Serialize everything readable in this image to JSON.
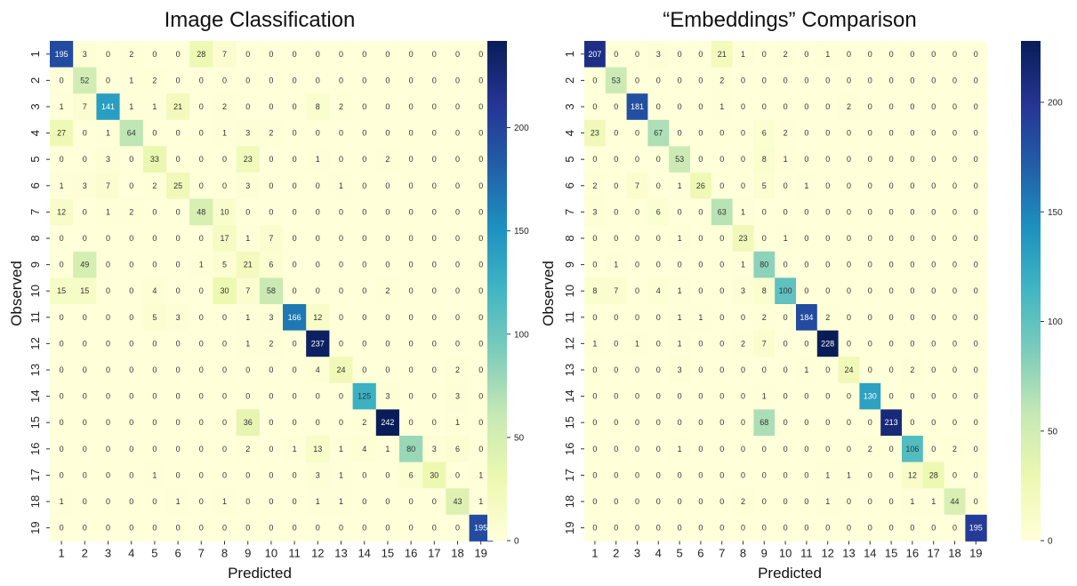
{
  "chart_data": [
    {
      "type": "heatmap",
      "title": "Image Classification",
      "xlabel": "Predicted",
      "ylabel": "Observed",
      "categories": [
        "1",
        "2",
        "3",
        "4",
        "5",
        "6",
        "7",
        "8",
        "9",
        "10",
        "11",
        "12",
        "13",
        "14",
        "15",
        "16",
        "17",
        "18",
        "19"
      ],
      "colorbar": {
        "min": 0,
        "max": 242,
        "ticks": [
          "0",
          "50",
          "100",
          "150",
          "200"
        ]
      },
      "matrix": [
        [
          195,
          3,
          0,
          2,
          0,
          0,
          28,
          7,
          0,
          0,
          0,
          0,
          0,
          0,
          0,
          0,
          0,
          0,
          0
        ],
        [
          0,
          52,
          0,
          1,
          2,
          0,
          0,
          0,
          0,
          0,
          0,
          0,
          0,
          0,
          0,
          0,
          0,
          0,
          0
        ],
        [
          1,
          7,
          141,
          1,
          1,
          21,
          0,
          2,
          0,
          0,
          0,
          8,
          2,
          0,
          0,
          0,
          0,
          0,
          0
        ],
        [
          27,
          0,
          1,
          64,
          0,
          0,
          0,
          1,
          3,
          2,
          0,
          0,
          0,
          0,
          0,
          0,
          0,
          0,
          0
        ],
        [
          0,
          0,
          3,
          0,
          33,
          0,
          0,
          0,
          23,
          0,
          0,
          1,
          0,
          0,
          2,
          0,
          0,
          0,
          0
        ],
        [
          1,
          3,
          7,
          0,
          2,
          25,
          0,
          0,
          3,
          0,
          0,
          0,
          1,
          0,
          0,
          0,
          0,
          0,
          0
        ],
        [
          12,
          0,
          1,
          2,
          0,
          0,
          48,
          10,
          0,
          0,
          0,
          0,
          0,
          0,
          0,
          0,
          0,
          0,
          0
        ],
        [
          0,
          0,
          0,
          0,
          0,
          0,
          0,
          17,
          1,
          7,
          0,
          0,
          0,
          0,
          0,
          0,
          0,
          0,
          0
        ],
        [
          0,
          49,
          0,
          0,
          0,
          0,
          1,
          5,
          21,
          6,
          0,
          0,
          0,
          0,
          0,
          0,
          0,
          0,
          0
        ],
        [
          15,
          15,
          0,
          0,
          4,
          0,
          0,
          30,
          7,
          58,
          0,
          0,
          0,
          0,
          2,
          0,
          0,
          0,
          0
        ],
        [
          0,
          0,
          0,
          0,
          5,
          3,
          0,
          0,
          1,
          3,
          166,
          12,
          0,
          0,
          0,
          0,
          0,
          0,
          0
        ],
        [
          0,
          0,
          0,
          0,
          0,
          0,
          0,
          0,
          1,
          2,
          0,
          237,
          0,
          0,
          0,
          0,
          0,
          0,
          0
        ],
        [
          0,
          0,
          0,
          0,
          0,
          0,
          0,
          0,
          0,
          0,
          0,
          4,
          24,
          0,
          0,
          0,
          0,
          2,
          0
        ],
        [
          0,
          0,
          0,
          0,
          0,
          0,
          0,
          0,
          0,
          0,
          0,
          0,
          0,
          125,
          3,
          0,
          0,
          3,
          0
        ],
        [
          0,
          0,
          0,
          0,
          0,
          0,
          0,
          0,
          36,
          0,
          0,
          0,
          0,
          2,
          242,
          0,
          0,
          1,
          0
        ],
        [
          0,
          0,
          0,
          0,
          0,
          0,
          0,
          0,
          2,
          0,
          1,
          13,
          1,
          4,
          1,
          80,
          3,
          6,
          0
        ],
        [
          0,
          0,
          0,
          0,
          1,
          0,
          0,
          0,
          0,
          0,
          0,
          3,
          1,
          0,
          0,
          6,
          30,
          0,
          1
        ],
        [
          1,
          0,
          0,
          0,
          0,
          1,
          0,
          1,
          0,
          0,
          0,
          1,
          1,
          0,
          0,
          0,
          0,
          43,
          1
        ],
        [
          0,
          0,
          0,
          0,
          0,
          0,
          0,
          0,
          0,
          0,
          0,
          0,
          0,
          0,
          0,
          0,
          0,
          0,
          195
        ]
      ]
    },
    {
      "type": "heatmap",
      "title": "“Embeddings” Comparison",
      "xlabel": "Predicted",
      "ylabel": "Observed",
      "categories": [
        "1",
        "2",
        "3",
        "4",
        "5",
        "6",
        "7",
        "8",
        "9",
        "10",
        "11",
        "12",
        "13",
        "14",
        "15",
        "16",
        "17",
        "18",
        "19"
      ],
      "colorbar": {
        "min": 0,
        "max": 228,
        "ticks": [
          "0",
          "50",
          "100",
          "150",
          "200"
        ]
      },
      "matrix": [
        [
          207,
          0,
          0,
          3,
          0,
          0,
          21,
          1,
          0,
          2,
          0,
          1,
          0,
          0,
          0,
          0,
          0,
          0,
          0
        ],
        [
          0,
          53,
          0,
          0,
          0,
          0,
          2,
          0,
          0,
          0,
          0,
          0,
          0,
          0,
          0,
          0,
          0,
          0,
          0
        ],
        [
          0,
          0,
          181,
          0,
          0,
          0,
          1,
          0,
          0,
          0,
          0,
          0,
          2,
          0,
          0,
          0,
          0,
          0,
          0
        ],
        [
          23,
          0,
          0,
          67,
          0,
          0,
          0,
          0,
          6,
          2,
          0,
          0,
          0,
          0,
          0,
          0,
          0,
          0,
          0
        ],
        [
          0,
          0,
          0,
          0,
          53,
          0,
          0,
          0,
          8,
          1,
          0,
          0,
          0,
          0,
          0,
          0,
          0,
          0,
          0
        ],
        [
          2,
          0,
          7,
          0,
          1,
          26,
          0,
          0,
          5,
          0,
          1,
          0,
          0,
          0,
          0,
          0,
          0,
          0,
          0
        ],
        [
          3,
          0,
          0,
          6,
          0,
          0,
          63,
          1,
          0,
          0,
          0,
          0,
          0,
          0,
          0,
          0,
          0,
          0,
          0
        ],
        [
          0,
          0,
          0,
          0,
          1,
          0,
          0,
          23,
          0,
          1,
          0,
          0,
          0,
          0,
          0,
          0,
          0,
          0,
          0
        ],
        [
          0,
          1,
          0,
          0,
          0,
          0,
          0,
          1,
          80,
          0,
          0,
          0,
          0,
          0,
          0,
          0,
          0,
          0,
          0
        ],
        [
          8,
          7,
          0,
          4,
          1,
          0,
          0,
          3,
          8,
          100,
          0,
          0,
          0,
          0,
          0,
          0,
          0,
          0,
          0
        ],
        [
          0,
          0,
          0,
          0,
          1,
          1,
          0,
          0,
          2,
          0,
          184,
          2,
          0,
          0,
          0,
          0,
          0,
          0,
          0
        ],
        [
          1,
          0,
          1,
          0,
          1,
          0,
          0,
          2,
          7,
          0,
          0,
          228,
          0,
          0,
          0,
          0,
          0,
          0,
          0
        ],
        [
          0,
          0,
          0,
          0,
          3,
          0,
          0,
          0,
          0,
          0,
          1,
          0,
          24,
          0,
          0,
          2,
          0,
          0,
          0
        ],
        [
          0,
          0,
          0,
          0,
          0,
          0,
          0,
          0,
          1,
          0,
          0,
          0,
          0,
          130,
          0,
          0,
          0,
          0,
          0
        ],
        [
          0,
          0,
          0,
          0,
          0,
          0,
          0,
          0,
          68,
          0,
          0,
          0,
          0,
          0,
          213,
          0,
          0,
          0,
          0
        ],
        [
          0,
          0,
          0,
          0,
          1,
          0,
          0,
          0,
          0,
          0,
          0,
          0,
          0,
          2,
          0,
          106,
          0,
          2,
          0
        ],
        [
          0,
          0,
          0,
          0,
          0,
          0,
          0,
          0,
          0,
          0,
          0,
          1,
          1,
          0,
          0,
          12,
          28,
          0,
          0
        ],
        [
          0,
          0,
          0,
          0,
          0,
          0,
          0,
          2,
          0,
          0,
          0,
          1,
          0,
          0,
          0,
          1,
          1,
          44,
          0
        ],
        [
          0,
          0,
          0,
          0,
          0,
          0,
          0,
          0,
          0,
          0,
          0,
          0,
          0,
          0,
          0,
          0,
          0,
          0,
          195
        ]
      ]
    }
  ]
}
